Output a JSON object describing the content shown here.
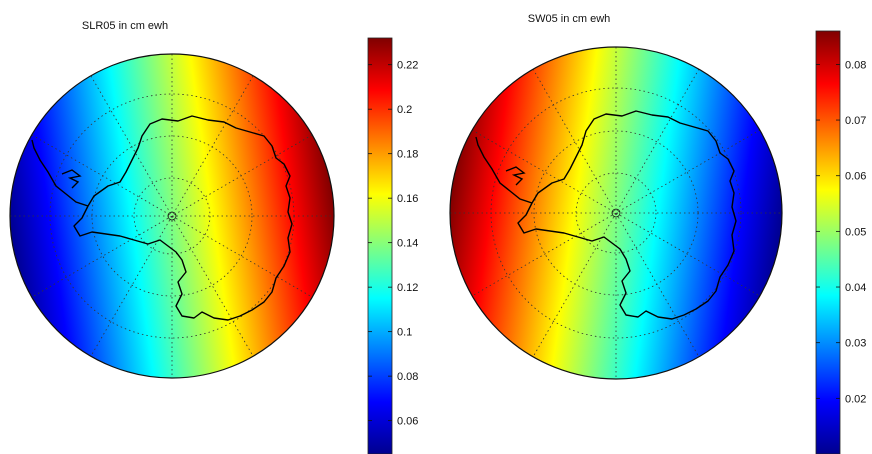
{
  "chart_data": [
    {
      "type": "heatmap",
      "title": "SLR05 in cm ewh",
      "projection": "south polar stereographic",
      "grid": true,
      "colormap": "jet",
      "colorbar": {
        "range": [
          0.045,
          0.232
        ],
        "ticks": [
          0.06,
          0.08,
          0.1,
          0.12,
          0.14,
          0.16,
          0.18,
          0.2,
          0.22
        ],
        "tick_labels": [
          "0.06",
          "0.08",
          "0.1",
          "0.12",
          "0.14",
          "0.16",
          "0.18",
          "0.2",
          "0.22"
        ],
        "placement": "right"
      },
      "field": {
        "pattern": "dipole",
        "high_side": "east",
        "low_side": "west",
        "max": 0.232,
        "min": 0.045
      }
    },
    {
      "type": "heatmap",
      "title": "SW05 in cm ewh",
      "projection": "south polar stereographic",
      "grid": true,
      "colormap": "jet",
      "colorbar": {
        "range": [
          0.01,
          0.086
        ],
        "ticks": [
          0.02,
          0.03,
          0.04,
          0.05,
          0.06,
          0.07,
          0.08
        ],
        "tick_labels": [
          "0.02",
          "0.03",
          "0.04",
          "0.05",
          "0.06",
          "0.07",
          "0.08"
        ],
        "placement": "right"
      },
      "field": {
        "pattern": "dipole",
        "high_side": "west",
        "low_side": "east",
        "max": 0.086,
        "min": 0.01
      }
    }
  ]
}
